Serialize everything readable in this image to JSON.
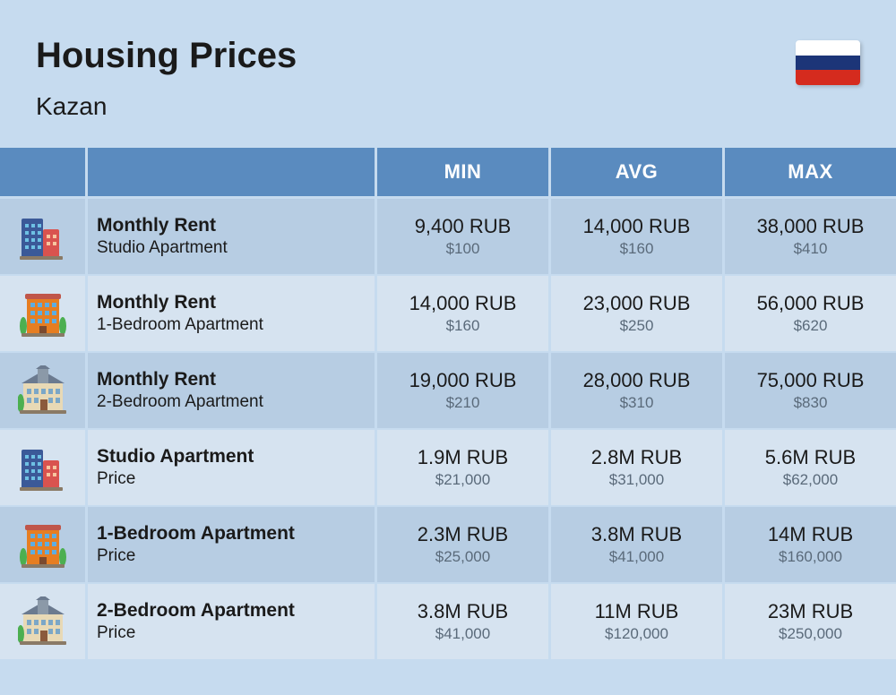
{
  "header": {
    "title": "Housing Prices",
    "city": "Kazan"
  },
  "flag": {
    "stripe1": "#ffffff",
    "stripe2": "#1c3578",
    "stripe3": "#d52b1e"
  },
  "columns": {
    "min": "MIN",
    "avg": "AVG",
    "max": "MAX"
  },
  "header_bg": "#5a8bbf",
  "row_bg_odd": "#b7cde3",
  "row_bg_even": "#d6e3f0",
  "rows": [
    {
      "icon": "towers",
      "title": "Monthly Rent",
      "subtitle": "Studio Apartment",
      "min_primary": "9,400 RUB",
      "min_secondary": "$100",
      "avg_primary": "14,000 RUB",
      "avg_secondary": "$160",
      "max_primary": "38,000 RUB",
      "max_secondary": "$410"
    },
    {
      "icon": "orange",
      "title": "Monthly Rent",
      "subtitle": "1-Bedroom Apartment",
      "min_primary": "14,000 RUB",
      "min_secondary": "$160",
      "avg_primary": "23,000 RUB",
      "avg_secondary": "$250",
      "max_primary": "56,000 RUB",
      "max_secondary": "$620"
    },
    {
      "icon": "mansion",
      "title": "Monthly Rent",
      "subtitle": "2-Bedroom Apartment",
      "min_primary": "19,000 RUB",
      "min_secondary": "$210",
      "avg_primary": "28,000 RUB",
      "avg_secondary": "$310",
      "max_primary": "75,000 RUB",
      "max_secondary": "$830"
    },
    {
      "icon": "towers",
      "title": "Studio Apartment",
      "subtitle": "Price",
      "min_primary": "1.9M RUB",
      "min_secondary": "$21,000",
      "avg_primary": "2.8M RUB",
      "avg_secondary": "$31,000",
      "max_primary": "5.6M RUB",
      "max_secondary": "$62,000"
    },
    {
      "icon": "orange",
      "title": "1-Bedroom Apartment",
      "subtitle": "Price",
      "min_primary": "2.3M RUB",
      "min_secondary": "$25,000",
      "avg_primary": "3.8M RUB",
      "avg_secondary": "$41,000",
      "max_primary": "14M RUB",
      "max_secondary": "$160,000"
    },
    {
      "icon": "mansion",
      "title": "2-Bedroom Apartment",
      "subtitle": "Price",
      "min_primary": "3.8M RUB",
      "min_secondary": "$41,000",
      "avg_primary": "11M RUB",
      "avg_secondary": "$120,000",
      "max_primary": "23M RUB",
      "max_secondary": "$250,000"
    }
  ]
}
